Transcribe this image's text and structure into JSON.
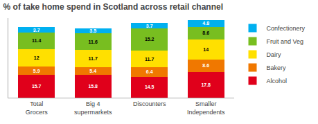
{
  "chart_data": {
    "type": "bar",
    "title": "% of take home spend in Scotland across retail channel",
    "categories": [
      "Total Grocers",
      "Big 4 supermarkets",
      "Discounters",
      "Smaller Independents"
    ],
    "series": [
      {
        "name": "Alcohol",
        "color": "#e0001b",
        "values": [
          15.7,
          15.8,
          14.5,
          17.8
        ]
      },
      {
        "name": "Bakery",
        "color": "#f07800",
        "values": [
          5.9,
          5.4,
          6.4,
          8.6
        ]
      },
      {
        "name": "Dairy",
        "color": "#ffe000",
        "values": [
          12.0,
          11.7,
          11.7,
          14.0
        ]
      },
      {
        "name": "Fruit and Veg",
        "color": "#78be20",
        "values": [
          11.4,
          11.6,
          15.2,
          8.6
        ]
      },
      {
        "name": "Confectionery",
        "color": "#00b0f0",
        "values": [
          3.7,
          3.5,
          3.7,
          4.8
        ]
      }
    ],
    "ylim": [
      0,
      55
    ],
    "yticks": [],
    "stacked": true,
    "data_labels": true,
    "tick_labels": "x",
    "grid": false,
    "legend": "right"
  }
}
